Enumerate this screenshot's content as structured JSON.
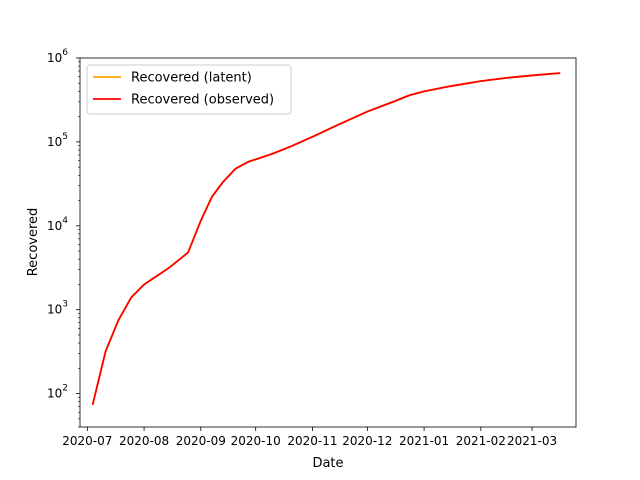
{
  "chart_data": {
    "type": "line",
    "xlabel": "Date",
    "ylabel": "Recovered",
    "yscale": "log",
    "xlim": [
      "2020-06-27",
      "2021-03-25"
    ],
    "ylim": [
      40,
      1000000
    ],
    "grid": false,
    "legend_position": "top-left",
    "x_ticks": [
      {
        "date": "2020-07-01",
        "label": "2020-07"
      },
      {
        "date": "2020-08-01",
        "label": "2020-08"
      },
      {
        "date": "2020-09-01",
        "label": "2020-09"
      },
      {
        "date": "2020-10-01",
        "label": "2020-10"
      },
      {
        "date": "2020-11-01",
        "label": "2020-11"
      },
      {
        "date": "2020-12-01",
        "label": "2020-12"
      },
      {
        "date": "2021-01-01",
        "label": "2021-01"
      },
      {
        "date": "2021-02-01",
        "label": "2021-02"
      },
      {
        "date": "2021-03-01",
        "label": "2021-03"
      }
    ],
    "y_ticks": [
      {
        "value": 100,
        "base": "10",
        "exp": "2"
      },
      {
        "value": 1000,
        "base": "10",
        "exp": "3"
      },
      {
        "value": 10000,
        "base": "10",
        "exp": "4"
      },
      {
        "value": 100000,
        "base": "10",
        "exp": "5"
      },
      {
        "value": 1000000,
        "base": "10",
        "exp": "6"
      }
    ],
    "x": [
      "2020-07-04",
      "2020-07-11",
      "2020-07-18",
      "2020-07-25",
      "2020-08-01",
      "2020-08-15",
      "2020-08-25",
      "2020-09-01",
      "2020-09-07",
      "2020-09-13",
      "2020-09-20",
      "2020-09-27",
      "2020-10-10",
      "2020-10-20",
      "2020-11-01",
      "2020-11-15",
      "2020-12-01",
      "2020-12-15",
      "2020-12-24",
      "2021-01-01",
      "2021-01-15",
      "2021-02-01",
      "2021-02-15",
      "2021-03-01",
      "2021-03-16"
    ],
    "series": [
      {
        "name": "Recovered (latent)",
        "color": "#ffa500",
        "values": [
          75,
          320,
          750,
          1400,
          2000,
          3200,
          4800,
          11500,
          22000,
          33000,
          48000,
          58000,
          72000,
          88000,
          115000,
          160000,
          230000,
          300000,
          360000,
          400000,
          460000,
          530000,
          580000,
          620000,
          660000
        ]
      },
      {
        "name": "Recovered (observed)",
        "color": "#ff0000",
        "values": [
          75,
          320,
          750,
          1400,
          2000,
          3200,
          4800,
          11500,
          22000,
          33000,
          48000,
          58000,
          72000,
          88000,
          115000,
          160000,
          230000,
          300000,
          360000,
          400000,
          460000,
          530000,
          580000,
          620000,
          660000
        ]
      }
    ]
  }
}
